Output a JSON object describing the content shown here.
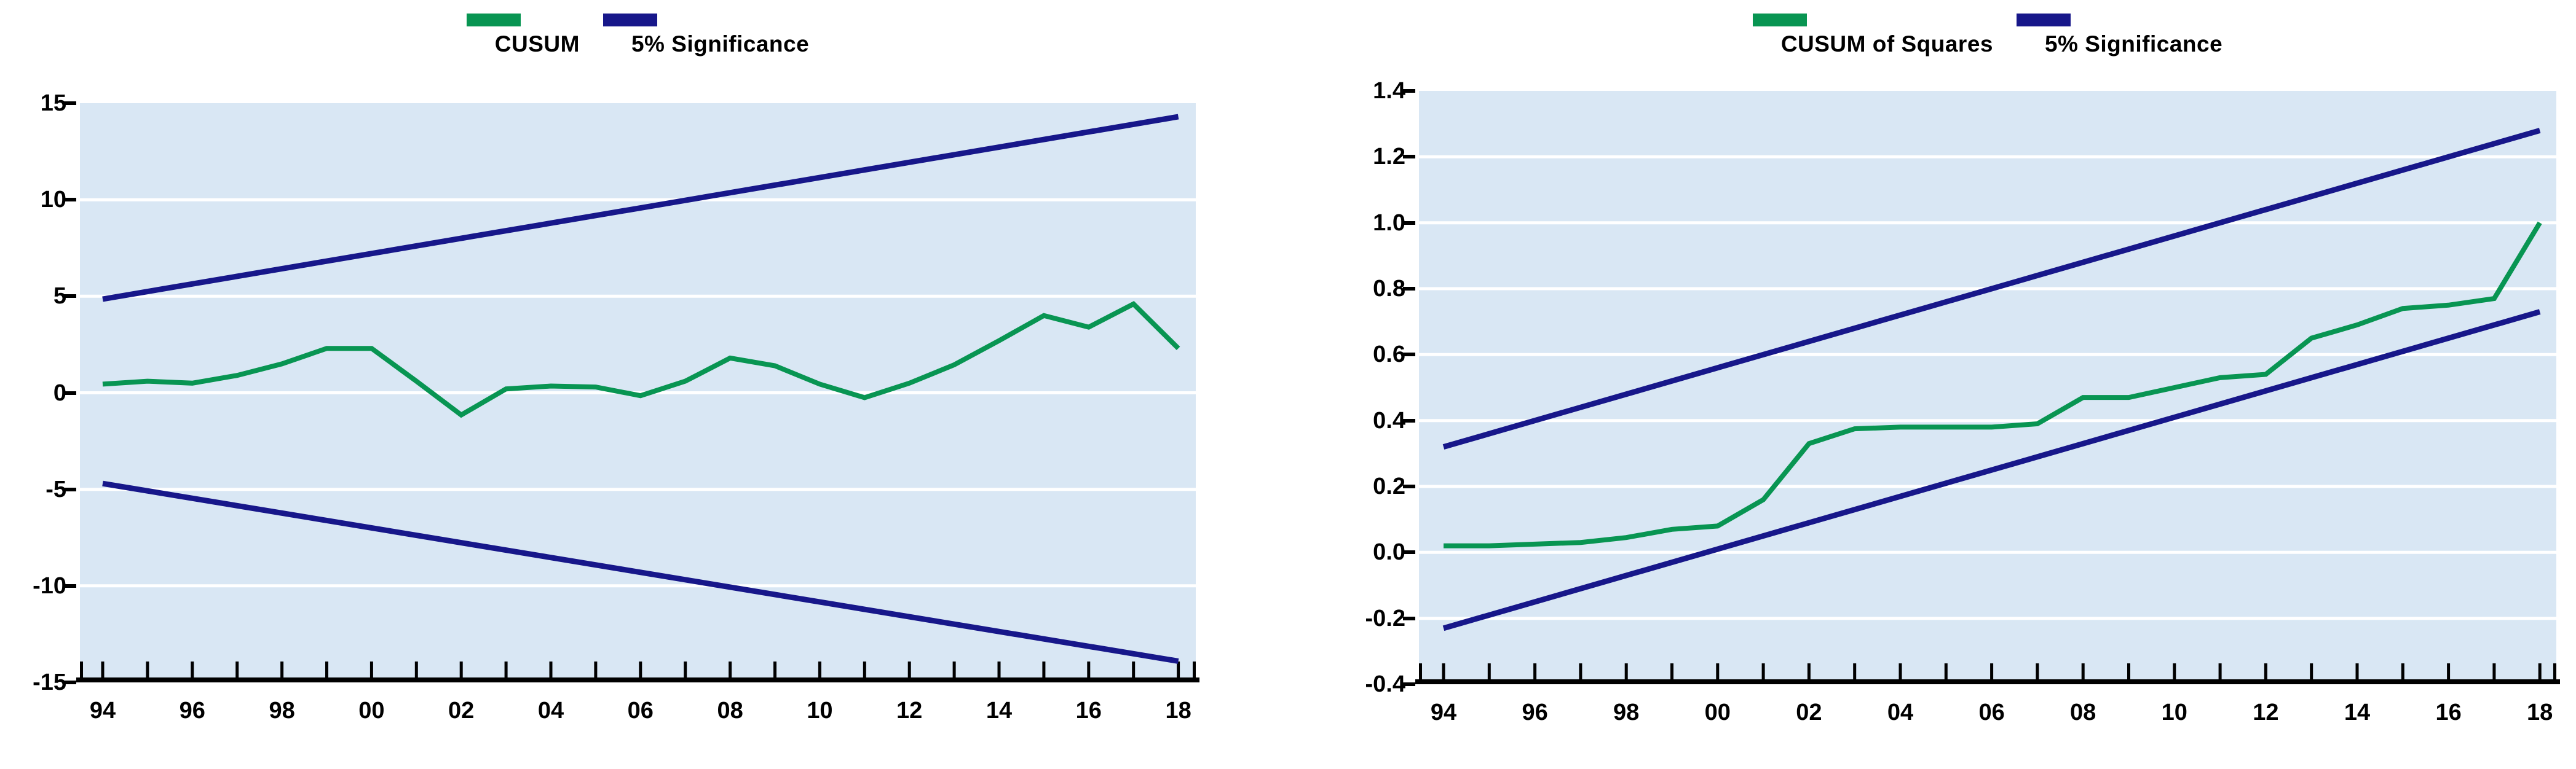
{
  "figure": {
    "background": "#ffffff",
    "description": "CUSUM and CUSUM of Squares stability test plots with 5% significance bounds"
  },
  "chart_data": [
    {
      "id": "cusum",
      "type": "line",
      "legend": [
        {
          "label": "CUSUM",
          "color": "#089552"
        },
        {
          "label": "5% Significance",
          "color": "#17178a"
        }
      ],
      "legend_position": "top-center",
      "grid": "on",
      "plot_bg": "#d9e7f4",
      "grid_color": "#ffffff",
      "axis_color": "#000000",
      "ylim": [
        -15,
        15
      ],
      "xlim": [
        1993.5,
        2018.4
      ],
      "y_ticks": [
        {
          "value": 15,
          "label": "15"
        },
        {
          "value": 10,
          "label": "10"
        },
        {
          "value": 5,
          "label": "5"
        },
        {
          "value": 0,
          "label": "0"
        },
        {
          "value": -5,
          "label": "-5"
        },
        {
          "value": -10,
          "label": "-10"
        },
        {
          "value": -15,
          "label": "-15"
        }
      ],
      "y_gridlines": [
        10,
        5,
        0,
        -5,
        -10
      ],
      "x_minor_tick_years": [
        1994,
        1995,
        1996,
        1997,
        1998,
        1999,
        2000,
        2001,
        2002,
        2003,
        2004,
        2005,
        2006,
        2007,
        2008,
        2009,
        2010,
        2011,
        2012,
        2013,
        2014,
        2015,
        2016,
        2017,
        2018
      ],
      "x_ticks": [
        {
          "year": 1994,
          "label": "94"
        },
        {
          "year": 1996,
          "label": "96"
        },
        {
          "year": 1998,
          "label": "98"
        },
        {
          "year": 2000,
          "label": "00"
        },
        {
          "year": 2002,
          "label": "02"
        },
        {
          "year": 2004,
          "label": "04"
        },
        {
          "year": 2006,
          "label": "06"
        },
        {
          "year": 2008,
          "label": "08"
        },
        {
          "year": 2010,
          "label": "10"
        },
        {
          "year": 2012,
          "label": "12"
        },
        {
          "year": 2014,
          "label": "14"
        },
        {
          "year": 2016,
          "label": "16"
        },
        {
          "year": 2018,
          "label": "18"
        }
      ],
      "years": [
        1994,
        1995,
        1996,
        1997,
        1998,
        1999,
        2000,
        2001,
        2002,
        2003,
        2004,
        2005,
        2006,
        2007,
        2008,
        2009,
        2010,
        2011,
        2012,
        2013,
        2014,
        2015,
        2016,
        2017,
        2018
      ],
      "series": [
        {
          "name": "CUSUM",
          "color": "#089552",
          "width": 8,
          "values": [
            0.45,
            0.6,
            0.5,
            0.9,
            1.5,
            2.3,
            2.3,
            0.6,
            -1.15,
            0.2,
            0.35,
            0.3,
            -0.15,
            0.6,
            1.8,
            1.4,
            0.45,
            -0.25,
            0.5,
            1.45,
            2.7,
            4.0,
            3.4,
            4.6,
            2.3
          ]
        }
      ],
      "bounds": [
        {
          "name": "5% significance upper",
          "color": "#17178a",
          "width": 9,
          "points": [
            [
              1994,
              4.85
            ],
            [
              2018,
              14.3
            ]
          ]
        },
        {
          "name": "5% significance lower",
          "color": "#17178a",
          "width": 9,
          "points": [
            [
              1994,
              -4.7
            ],
            [
              2018,
              -13.9
            ]
          ]
        }
      ]
    },
    {
      "id": "cusum_sq",
      "type": "line",
      "legend": [
        {
          "label": "CUSUM of Squares",
          "color": "#089552"
        },
        {
          "label": "5% Significance",
          "color": "#17178a"
        }
      ],
      "legend_position": "top-center",
      "grid": "on",
      "plot_bg": "#d9e7f4",
      "grid_color": "#ffffff",
      "axis_color": "#000000",
      "ylim": [
        -0.4,
        1.4
      ],
      "xlim": [
        1993.5,
        2018.4
      ],
      "y_ticks": [
        {
          "value": 1.4,
          "label": "1.4"
        },
        {
          "value": 1.2,
          "label": "1.2"
        },
        {
          "value": 1.0,
          "label": "1.0"
        },
        {
          "value": 0.8,
          "label": "0.8"
        },
        {
          "value": 0.6,
          "label": "0.6"
        },
        {
          "value": 0.4,
          "label": "0.4"
        },
        {
          "value": 0.2,
          "label": "0.2"
        },
        {
          "value": 0.0,
          "label": "0.0"
        },
        {
          "value": -0.2,
          "label": "-0.2"
        },
        {
          "value": -0.4,
          "label": "-0.4"
        }
      ],
      "y_gridlines": [
        1.2,
        1.0,
        0.8,
        0.6,
        0.4,
        0.2,
        0.0,
        -0.2
      ],
      "x_minor_tick_years": [
        1994,
        1995,
        1996,
        1997,
        1998,
        1999,
        2000,
        2001,
        2002,
        2003,
        2004,
        2005,
        2006,
        2007,
        2008,
        2009,
        2010,
        2011,
        2012,
        2013,
        2014,
        2015,
        2016,
        2017,
        2018
      ],
      "x_ticks": [
        {
          "year": 1994,
          "label": "94"
        },
        {
          "year": 1996,
          "label": "96"
        },
        {
          "year": 1998,
          "label": "98"
        },
        {
          "year": 2000,
          "label": "00"
        },
        {
          "year": 2002,
          "label": "02"
        },
        {
          "year": 2004,
          "label": "04"
        },
        {
          "year": 2006,
          "label": "06"
        },
        {
          "year": 2008,
          "label": "08"
        },
        {
          "year": 2010,
          "label": "10"
        },
        {
          "year": 2012,
          "label": "12"
        },
        {
          "year": 2014,
          "label": "14"
        },
        {
          "year": 2016,
          "label": "16"
        },
        {
          "year": 2018,
          "label": "18"
        }
      ],
      "years": [
        1994,
        1995,
        1996,
        1997,
        1998,
        1999,
        2000,
        2001,
        2002,
        2003,
        2004,
        2005,
        2006,
        2007,
        2008,
        2009,
        2010,
        2011,
        2012,
        2013,
        2014,
        2015,
        2016,
        2017,
        2018
      ],
      "series": [
        {
          "name": "CUSUM of Squares",
          "color": "#089552",
          "width": 8,
          "values": [
            0.02,
            0.02,
            0.025,
            0.03,
            0.045,
            0.07,
            0.08,
            0.16,
            0.33,
            0.375,
            0.38,
            0.38,
            0.38,
            0.39,
            0.47,
            0.47,
            0.5,
            0.53,
            0.54,
            0.65,
            0.69,
            0.74,
            0.75,
            0.77,
            1.0
          ]
        }
      ],
      "bounds": [
        {
          "name": "5% significance upper",
          "color": "#17178a",
          "width": 9,
          "points": [
            [
              1994,
              0.32
            ],
            [
              2018,
              1.28
            ]
          ]
        },
        {
          "name": "5% significance lower",
          "color": "#17178a",
          "width": 9,
          "points": [
            [
              1994,
              -0.23
            ],
            [
              2018,
              0.73
            ]
          ]
        }
      ]
    }
  ]
}
